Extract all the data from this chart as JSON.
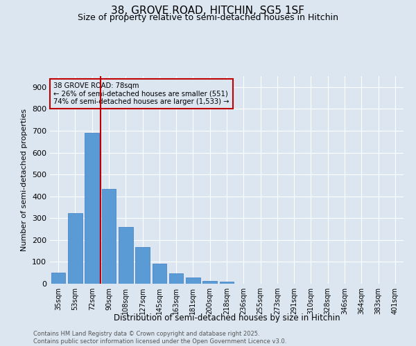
{
  "title1": "38, GROVE ROAD, HITCHIN, SG5 1SF",
  "title2": "Size of property relative to semi-detached houses in Hitchin",
  "xlabel": "Distribution of semi-detached houses by size in Hitchin",
  "ylabel": "Number of semi-detached properties",
  "categories": [
    "35sqm",
    "53sqm",
    "72sqm",
    "90sqm",
    "108sqm",
    "127sqm",
    "145sqm",
    "163sqm",
    "181sqm",
    "200sqm",
    "218sqm",
    "236sqm",
    "255sqm",
    "273sqm",
    "291sqm",
    "310sqm",
    "328sqm",
    "346sqm",
    "364sqm",
    "383sqm",
    "401sqm"
  ],
  "values": [
    50,
    322,
    690,
    435,
    260,
    168,
    93,
    47,
    27,
    13,
    8,
    0,
    0,
    0,
    0,
    0,
    0,
    0,
    0,
    0,
    0
  ],
  "bar_color": "#5b9bd5",
  "bar_edge_color": "#4a86c8",
  "background_color": "#dce6f1",
  "vline_color": "#c00000",
  "annotation_title": "38 GROVE ROAD: 78sqm",
  "annotation_line1": "← 26% of semi-detached houses are smaller (551)",
  "annotation_line2": "74% of semi-detached houses are larger (1,533) →",
  "annotation_box_color": "#c00000",
  "ylim": [
    0,
    950
  ],
  "yticks": [
    0,
    100,
    200,
    300,
    400,
    500,
    600,
    700,
    800,
    900
  ],
  "footer1": "Contains HM Land Registry data © Crown copyright and database right 2025.",
  "footer2": "Contains public sector information licensed under the Open Government Licence v3.0."
}
